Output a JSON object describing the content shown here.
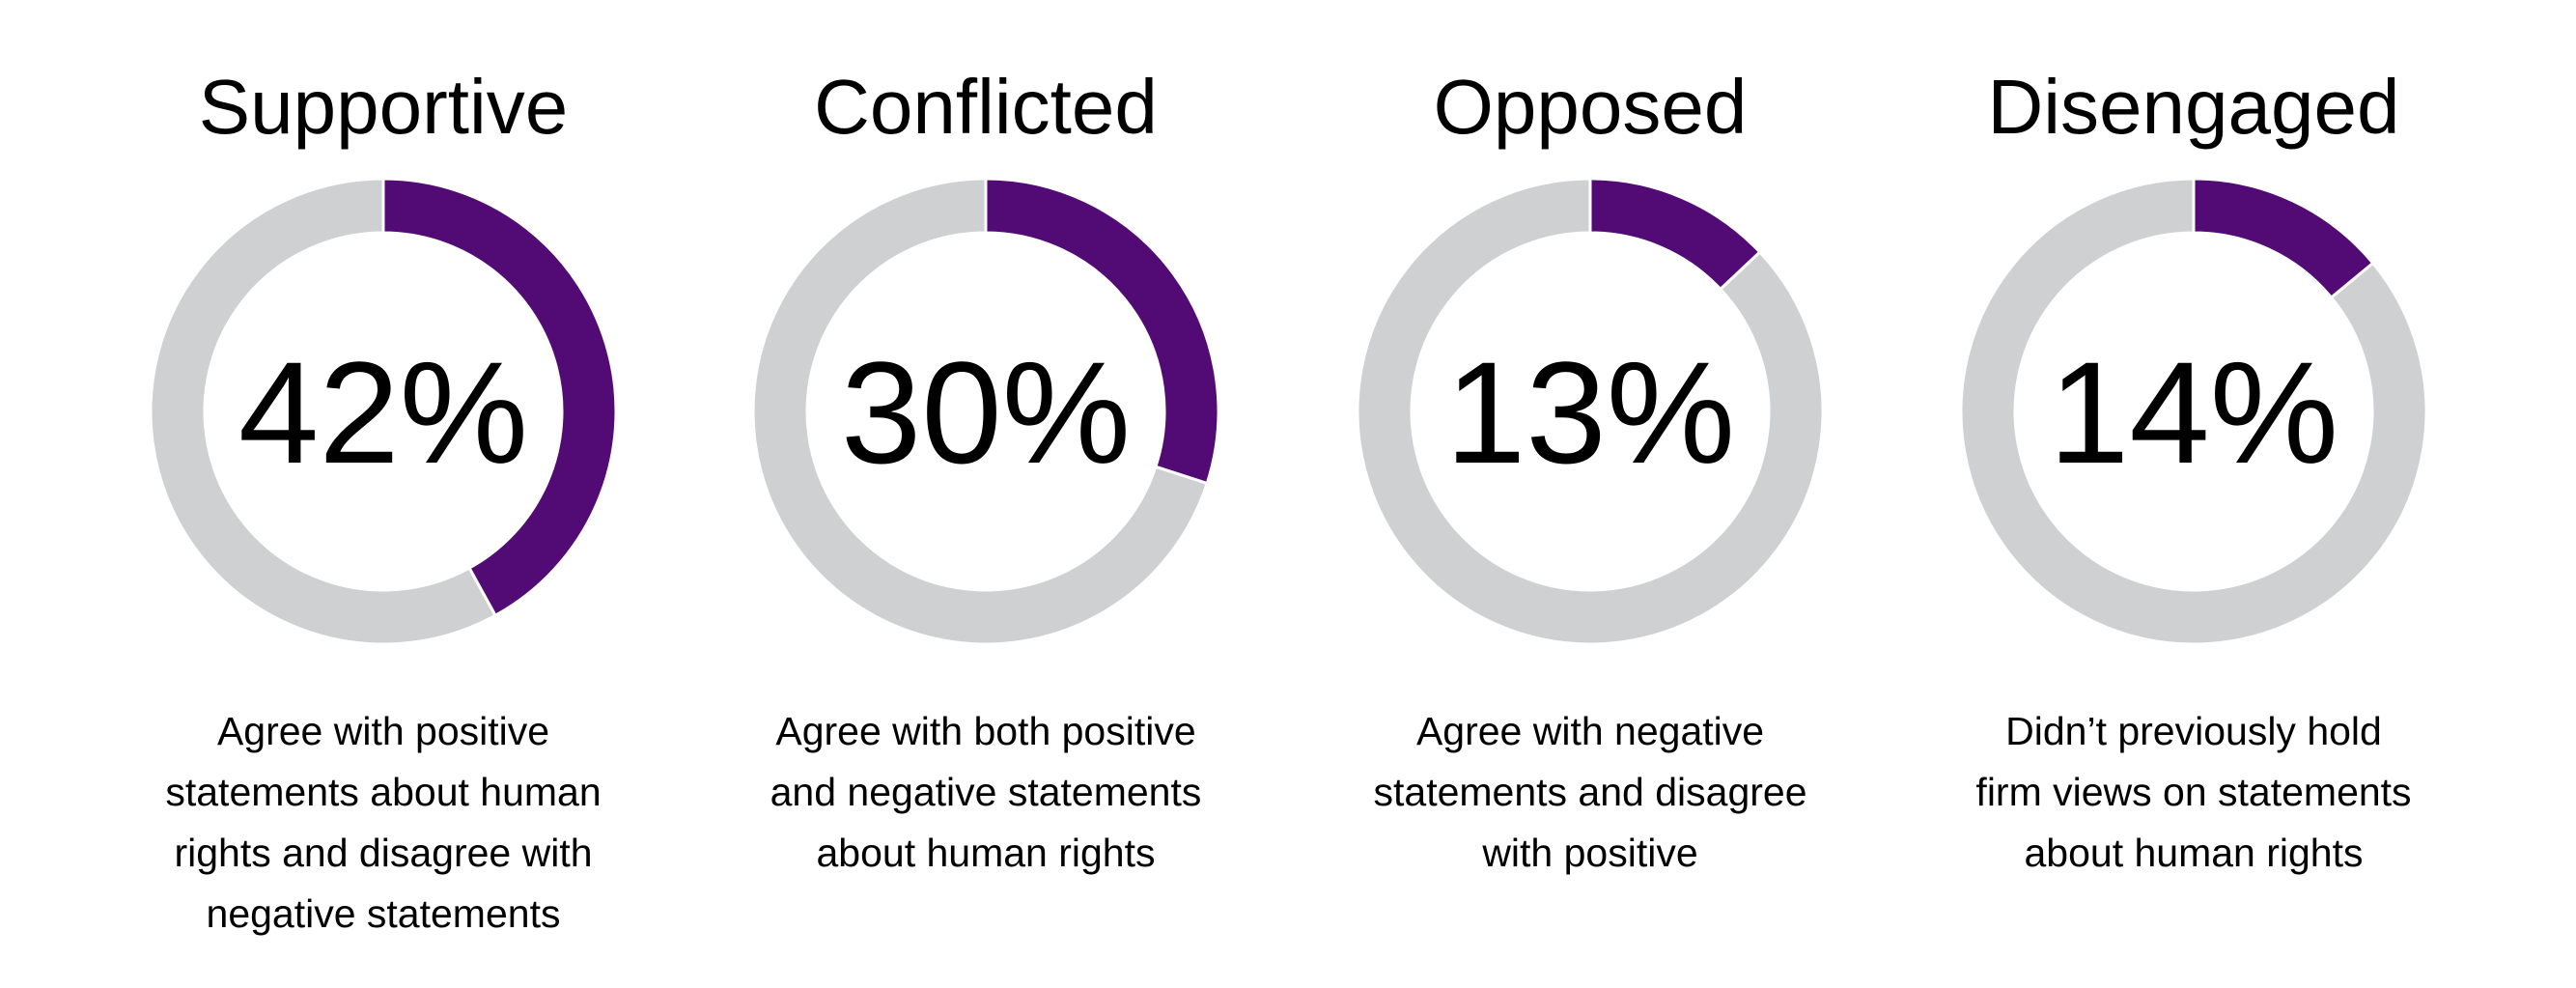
{
  "chart_data": {
    "type": "pie",
    "variant": "donut",
    "colors": {
      "value": "#520a75",
      "remainder": "#cfd0d2"
    },
    "charts": [
      {
        "title": "Supportive",
        "value": 42,
        "label": "42%",
        "description": [
          "Agree with positive",
          "statements about human",
          "rights and disagree with",
          "negative statements"
        ]
      },
      {
        "title": "Conflicted",
        "value": 30,
        "label": "30%",
        "description": [
          "Agree with both positive",
          "and negative statements",
          "about human rights"
        ]
      },
      {
        "title": "Opposed",
        "value": 13,
        "label": "13%",
        "description": [
          "Agree with negative",
          "statements and disagree",
          "with positive"
        ]
      },
      {
        "title": "Disengaged",
        "value": 14,
        "label": "14%",
        "description": [
          "Didn’t previously hold",
          "firm views on statements",
          "about human rights"
        ]
      }
    ]
  }
}
